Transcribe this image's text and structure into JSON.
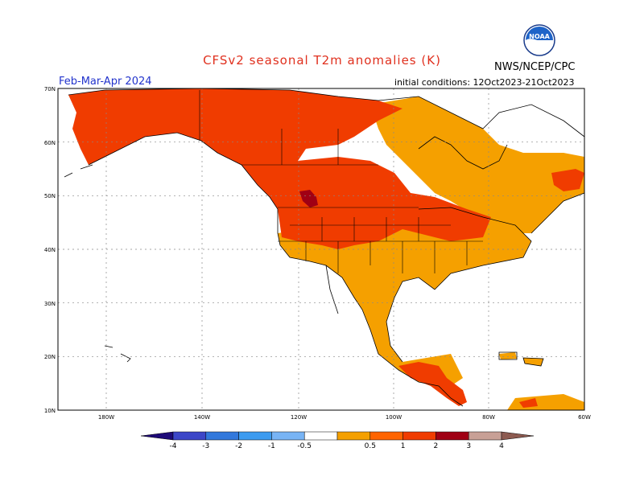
{
  "header": {
    "title": "CFSv2 seasonal T2m anomalies (K)",
    "org": "NWS/NCEP/CPC",
    "period": "Feb-Mar-Apr 2024",
    "init": "initial conditions: 12Oct2023-21Oct2023"
  },
  "logo": {
    "icon": "noaa-logo-icon"
  },
  "axes": {
    "lat_labels": [
      "70N",
      "60N",
      "50N",
      "40N",
      "30N",
      "20N",
      "10N"
    ],
    "lon_labels": [
      "180W",
      "140W",
      "120W",
      "100W",
      "80W",
      "60W"
    ]
  },
  "colorbar": {
    "labels": [
      "-4",
      "-3",
      "-2",
      "-1",
      "-0.5",
      "0.5",
      "1",
      "2",
      "3",
      "4"
    ],
    "colors": [
      "#1e0a78",
      "#3c46c8",
      "#3278dc",
      "#3c9bf0",
      "#78b4f5",
      "#ffffff",
      "#f5a000",
      "#ff6400",
      "#f03c00",
      "#a00014",
      "#c8a096",
      "#8c5a50"
    ]
  },
  "map": {
    "colors": {
      "anomaly_05_1": "#f5a000",
      "anomaly_1_2": "#f03c00",
      "anomaly_2_3": "#a00014"
    }
  }
}
